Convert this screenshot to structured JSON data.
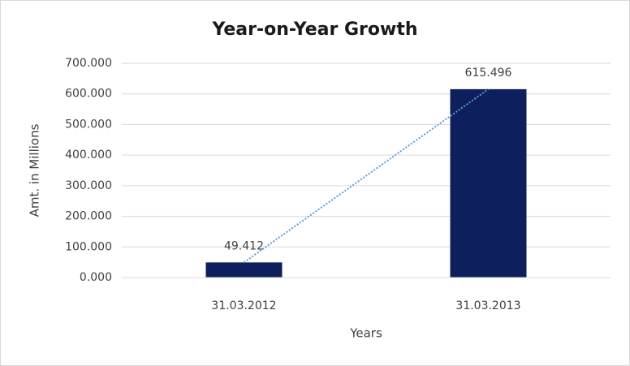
{
  "chart_data": {
    "type": "bar",
    "title": "Year-on-Year Growth",
    "x_label": "Years",
    "y_label": "Amt. in Millions",
    "categories": [
      "31.03.2012",
      "31.03.2013"
    ],
    "values": [
      49.412,
      615.496
    ],
    "color": "#0d1f5c",
    "ylim": [
      0,
      700
    ],
    "yticks": [
      {
        "value": 0,
        "label": "0.000"
      },
      {
        "value": 100,
        "label": "100.000"
      },
      {
        "value": 200,
        "label": "200.000"
      },
      {
        "value": 300,
        "label": "300.000"
      },
      {
        "value": 400,
        "label": "400.000"
      },
      {
        "value": 500,
        "label": "500.000"
      },
      {
        "value": 600,
        "label": "600.000"
      },
      {
        "value": 700,
        "label": "700.000"
      }
    ],
    "grid": true,
    "data_labels": true,
    "trendline": "linear",
    "trendline_color": "#5b9bd5"
  }
}
